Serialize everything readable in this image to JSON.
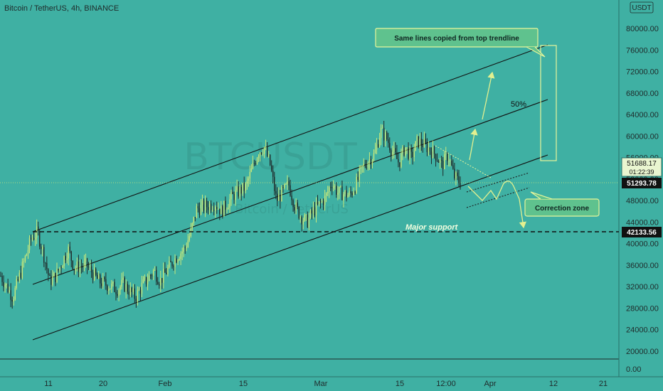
{
  "header": {
    "title": "Bitcoin / TetherUS, 4h, BINANCE",
    "currency_badge": "USDT",
    "currency_menu_icon": "chevron-down-icon"
  },
  "watermark": {
    "symbol": "BTCUSDT",
    "description": "Bitcoin / TetherUS"
  },
  "price_tags": {
    "current": "51688.17",
    "countdown": "01:22:39",
    "level": "51293.78",
    "support": "42133.56"
  },
  "annotations": {
    "callout_top": "Same lines copied from top trendline",
    "callout_correction": "Correction zone",
    "fifty_percent": "50%",
    "major_support": "Major support"
  },
  "colors": {
    "background": "#3fb0a3",
    "candle": "#c9e87a",
    "callout_fill": "#5fc28e",
    "callout_border": "#e8f59a",
    "arrow": "#e3f08f",
    "trendline": "#111111",
    "tag_dark": "#111111"
  },
  "chart_data": {
    "type": "candlestick",
    "title": "Bitcoin / TetherUS, 4h, BINANCE",
    "yaxis_ticks": [
      80000,
      76000,
      72000,
      68000,
      64000,
      60000,
      56000,
      52000,
      48000,
      44000,
      40000,
      36000,
      32000,
      28000,
      24000,
      20000
    ],
    "yaxis_tick_labels": [
      "80000.00",
      "76000.00",
      "72000.00",
      "68000.00",
      "64000.00",
      "60000.00",
      "56000.00",
      "52000.00",
      "48000.00",
      "44000.00",
      "40000.00",
      "36000.00",
      "32000.00",
      "28000.00",
      "24000.00",
      "20000.00"
    ],
    "lower_pane_tick": "0.00",
    "xaxis_ticks": [
      "11",
      "20",
      "Feb",
      "15",
      "Mar",
      "15",
      "12:00",
      "Apr",
      "12",
      "21"
    ],
    "ylim": [
      18500,
      83000
    ],
    "price_path": [
      {
        "t": 0,
        "p": 34000
      },
      {
        "t": 2,
        "p": 30000
      },
      {
        "t": 5,
        "p": 41000
      },
      {
        "t": 6,
        "p": 42100
      },
      {
        "t": 7,
        "p": 38000
      },
      {
        "t": 8,
        "p": 33000
      },
      {
        "t": 9,
        "p": 34000
      },
      {
        "t": 11,
        "p": 39000
      },
      {
        "t": 12,
        "p": 35500
      },
      {
        "t": 14,
        "p": 36000
      },
      {
        "t": 16,
        "p": 33000
      },
      {
        "t": 18,
        "p": 32000
      },
      {
        "t": 19,
        "p": 31500
      },
      {
        "t": 20,
        "p": 32500
      },
      {
        "t": 22,
        "p": 30000
      },
      {
        "t": 23,
        "p": 32000
      },
      {
        "t": 25,
        "p": 35000
      },
      {
        "t": 26,
        "p": 33000
      },
      {
        "t": 28,
        "p": 36500
      },
      {
        "t": 29,
        "p": 38000
      },
      {
        "t": 30,
        "p": 39000
      },
      {
        "t": 31,
        "p": 42000
      },
      {
        "t": 32,
        "p": 46500
      },
      {
        "t": 33,
        "p": 46800
      },
      {
        "t": 35,
        "p": 47500
      },
      {
        "t": 36,
        "p": 46000
      },
      {
        "t": 38,
        "p": 49000
      },
      {
        "t": 40,
        "p": 50500
      },
      {
        "t": 42,
        "p": 57000
      },
      {
        "t": 43,
        "p": 58000
      },
      {
        "t": 44,
        "p": 54500
      },
      {
        "t": 45,
        "p": 48000
      },
      {
        "t": 46,
        "p": 49500
      },
      {
        "t": 47,
        "p": 51000
      },
      {
        "t": 48,
        "p": 47000
      },
      {
        "t": 49,
        "p": 45000
      },
      {
        "t": 50,
        "p": 44000
      },
      {
        "t": 51,
        "p": 46000
      },
      {
        "t": 53,
        "p": 48500
      },
      {
        "t": 54,
        "p": 51500
      },
      {
        "t": 55,
        "p": 49500
      },
      {
        "t": 57,
        "p": 49000
      },
      {
        "t": 58,
        "p": 51000
      },
      {
        "t": 59,
        "p": 54000
      },
      {
        "t": 60,
        "p": 55500
      },
      {
        "t": 61,
        "p": 56500
      },
      {
        "t": 62,
        "p": 61000
      },
      {
        "t": 63,
        "p": 59500
      },
      {
        "t": 64,
        "p": 57000
      },
      {
        "t": 65,
        "p": 55000
      },
      {
        "t": 66,
        "p": 58000
      },
      {
        "t": 67,
        "p": 56000
      },
      {
        "t": 68,
        "p": 59000
      },
      {
        "t": 69,
        "p": 58500
      },
      {
        "t": 70,
        "p": 57500
      },
      {
        "t": 71,
        "p": 56500
      },
      {
        "t": 72,
        "p": 54500
      },
      {
        "t": 73,
        "p": 56500
      },
      {
        "t": 74,
        "p": 52500
      },
      {
        "t": 75,
        "p": 51300
      }
    ],
    "horizontal_lines": [
      {
        "value": 42133.56,
        "style": "dashed",
        "label": "Major support"
      }
    ]
  }
}
